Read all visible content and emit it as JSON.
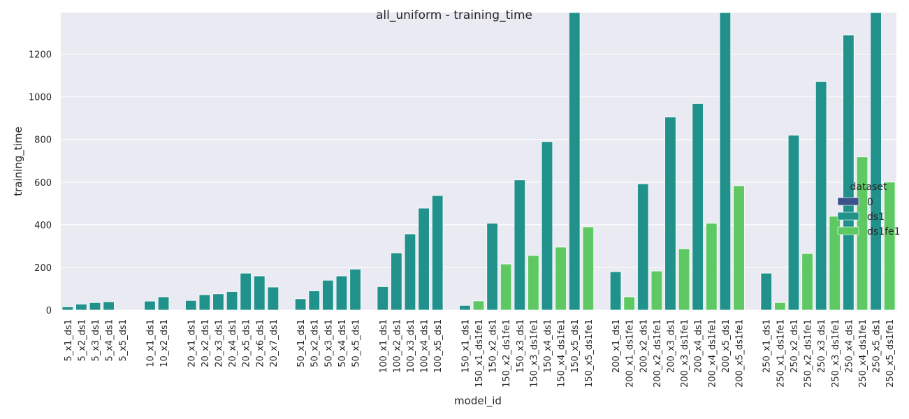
{
  "chart_data": {
    "type": "bar",
    "title": "all_uniform - training_time",
    "xlabel": "model_id",
    "ylabel": "training_time",
    "ylim": [
      0,
      1395
    ],
    "yticks": [
      0,
      200,
      400,
      600,
      800,
      1000,
      1200
    ],
    "grid": true,
    "legend": {
      "title": "dataset",
      "placement": "right",
      "entries": [
        {
          "name": "0",
          "color": "#3b528b"
        },
        {
          "name": "ds1",
          "color": "#21918c"
        },
        {
          "name": "ds1fe1",
          "color": "#5ec962"
        }
      ]
    },
    "bars": [
      {
        "label": "5_x1_ds1",
        "value": 15,
        "dataset": "ds1"
      },
      {
        "label": "5_x2_ds1",
        "value": 28,
        "dataset": "ds1"
      },
      {
        "label": "5_x3_ds1",
        "value": 35,
        "dataset": "ds1"
      },
      {
        "label": "5_x4_ds1",
        "value": 39,
        "dataset": "ds1"
      },
      {
        "label": "5_x5_ds1",
        "value": 0,
        "dataset": "ds1"
      },
      {
        "label": "",
        "value": 0,
        "dataset": "0"
      },
      {
        "label": "10_x1_ds1",
        "value": 42,
        "dataset": "ds1"
      },
      {
        "label": "10_x2_ds1",
        "value": 62,
        "dataset": "ds1"
      },
      {
        "label": "",
        "value": 0,
        "dataset": "0"
      },
      {
        "label": "20_x1_ds1",
        "value": 45,
        "dataset": "ds1"
      },
      {
        "label": "20_x2_ds1",
        "value": 72,
        "dataset": "ds1"
      },
      {
        "label": "20_x3_ds1",
        "value": 76,
        "dataset": "ds1"
      },
      {
        "label": "20_x4_ds1",
        "value": 87,
        "dataset": "ds1"
      },
      {
        "label": "20_x5_ds1",
        "value": 173,
        "dataset": "ds1"
      },
      {
        "label": "20_x6_ds1",
        "value": 160,
        "dataset": "ds1"
      },
      {
        "label": "20_x7_ds1",
        "value": 108,
        "dataset": "ds1"
      },
      {
        "label": "",
        "value": 0,
        "dataset": "0"
      },
      {
        "label": "50_x1_ds1",
        "value": 53,
        "dataset": "ds1"
      },
      {
        "label": "50_x2_ds1",
        "value": 90,
        "dataset": "ds1"
      },
      {
        "label": "50_x3_ds1",
        "value": 140,
        "dataset": "ds1"
      },
      {
        "label": "50_x4_ds1",
        "value": 160,
        "dataset": "ds1"
      },
      {
        "label": "50_x5_ds1",
        "value": 192,
        "dataset": "ds1"
      },
      {
        "label": "",
        "value": 0,
        "dataset": "0"
      },
      {
        "label": "100_x1_ds1",
        "value": 110,
        "dataset": "ds1"
      },
      {
        "label": "100_x2_ds1",
        "value": 268,
        "dataset": "ds1"
      },
      {
        "label": "100_x3_ds1",
        "value": 357,
        "dataset": "ds1"
      },
      {
        "label": "100_x4_ds1",
        "value": 478,
        "dataset": "ds1"
      },
      {
        "label": "100_x5_ds1",
        "value": 537,
        "dataset": "ds1"
      },
      {
        "label": "",
        "value": 0,
        "dataset": "0"
      },
      {
        "label": "150_x1_ds1",
        "value": 22,
        "dataset": "ds1"
      },
      {
        "label": "150_x1_ds1fe1",
        "value": 43,
        "dataset": "ds1fe1"
      },
      {
        "label": "150_x2_ds1",
        "value": 407,
        "dataset": "ds1"
      },
      {
        "label": "150_x2_ds1fe1",
        "value": 216,
        "dataset": "ds1fe1"
      },
      {
        "label": "150_x3_ds1",
        "value": 610,
        "dataset": "ds1"
      },
      {
        "label": "150_x3_ds1fe1",
        "value": 256,
        "dataset": "ds1fe1"
      },
      {
        "label": "150_x4_ds1",
        "value": 790,
        "dataset": "ds1"
      },
      {
        "label": "150_x4_ds1fe1",
        "value": 295,
        "dataset": "ds1fe1"
      },
      {
        "label": "150_x5_ds1",
        "value": 1395,
        "dataset": "ds1"
      },
      {
        "label": "150_x5_ds1fe1",
        "value": 390,
        "dataset": "ds1fe1"
      },
      {
        "label": "",
        "value": 0,
        "dataset": "0"
      },
      {
        "label": "200_x1_ds1",
        "value": 180,
        "dataset": "ds1"
      },
      {
        "label": "200_x1_ds1fe1",
        "value": 62,
        "dataset": "ds1fe1"
      },
      {
        "label": "200_x2_ds1",
        "value": 592,
        "dataset": "ds1"
      },
      {
        "label": "200_x2_ds1fe1",
        "value": 183,
        "dataset": "ds1fe1"
      },
      {
        "label": "200_x3_ds1",
        "value": 905,
        "dataset": "ds1"
      },
      {
        "label": "200_x3_ds1fe1",
        "value": 287,
        "dataset": "ds1fe1"
      },
      {
        "label": "200_x4_ds1",
        "value": 968,
        "dataset": "ds1"
      },
      {
        "label": "200_x4_ds1fe1",
        "value": 407,
        "dataset": "ds1fe1"
      },
      {
        "label": "200_x5_ds1",
        "value": 1395,
        "dataset": "ds1"
      },
      {
        "label": "200_x5_ds1fe1",
        "value": 583,
        "dataset": "ds1fe1"
      },
      {
        "label": "",
        "value": 0,
        "dataset": "0"
      },
      {
        "label": "250_x1_ds1",
        "value": 173,
        "dataset": "ds1"
      },
      {
        "label": "250_x1_ds1fe1",
        "value": 35,
        "dataset": "ds1fe1"
      },
      {
        "label": "250_x2_ds1",
        "value": 820,
        "dataset": "ds1"
      },
      {
        "label": "250_x2_ds1fe1",
        "value": 265,
        "dataset": "ds1fe1"
      },
      {
        "label": "250_x3_ds1",
        "value": 1072,
        "dataset": "ds1"
      },
      {
        "label": "250_x3_ds1fe1",
        "value": 440,
        "dataset": "ds1fe1"
      },
      {
        "label": "250_x4_ds1",
        "value": 1290,
        "dataset": "ds1"
      },
      {
        "label": "250_x4_ds1fe1",
        "value": 718,
        "dataset": "ds1fe1"
      },
      {
        "label": "250_x5_ds1",
        "value": 1395,
        "dataset": "ds1"
      },
      {
        "label": "250_x5_ds1fe1",
        "value": 600,
        "dataset": "ds1fe1"
      }
    ]
  },
  "colors": {
    "plot_background": "#eaeaf2",
    "grid": "#ffffff",
    "text": "#262626"
  }
}
